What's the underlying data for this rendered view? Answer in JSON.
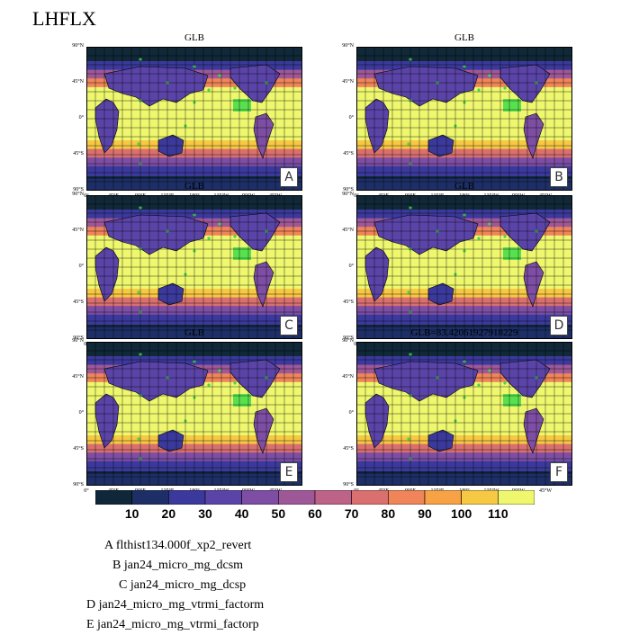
{
  "title": "LHFLX",
  "panels": [
    {
      "title": "GLB",
      "letter": "A"
    },
    {
      "title": "GLB",
      "letter": "B"
    },
    {
      "title": "GLB",
      "letter": "C"
    },
    {
      "title": "GLB",
      "letter": "D"
    },
    {
      "title": "GLB",
      "letter": "E"
    },
    {
      "title": "GLB=83.42061927918229",
      "letter": "F"
    }
  ],
  "lat_labels": [
    "90°N",
    "45°N",
    "0°",
    "45°S",
    "90°S"
  ],
  "lon_labels": [
    "0°",
    "45°E",
    "90°E",
    "135°E",
    "180°",
    "135°W",
    "90°W",
    "45°W"
  ],
  "colorbar": {
    "labels": [
      "10",
      "20",
      "30",
      "40",
      "50",
      "60",
      "70",
      "80",
      "90",
      "100",
      "110"
    ],
    "colors": [
      "#0f2738",
      "#1d2f66",
      "#3b3a9c",
      "#5b44a8",
      "#7d4ea3",
      "#9e5898",
      "#bc6387",
      "#d9706f",
      "#ef8559",
      "#f7a244",
      "#f6c844",
      "#eef76e"
    ]
  },
  "cases": [
    "A  flthist134.000f_xp2_revert",
    "B  jan24_micro_mg_dcsm",
    "C  jan24_micro_mg_dcsp",
    "D  jan24_micro_mg_vtrmi_factorm",
    "E  jan24_micro_mg_vtrmi_factorp"
  ]
}
